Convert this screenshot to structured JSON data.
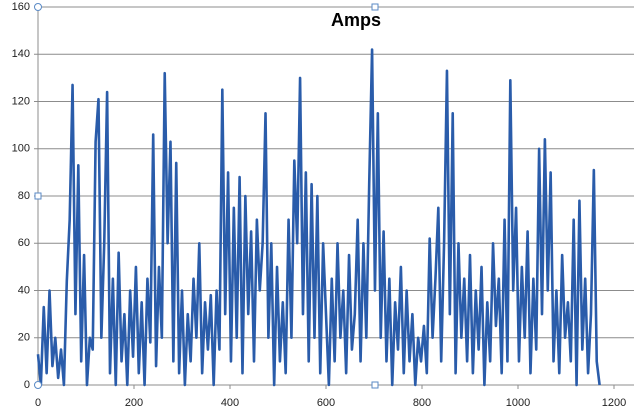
{
  "chart_data": {
    "type": "line",
    "title": "Amps",
    "x": [
      0,
      6,
      12,
      18,
      24,
      30,
      36,
      42,
      48,
      54,
      60,
      66,
      72,
      78,
      84,
      90,
      96,
      102,
      108,
      114,
      120,
      126,
      132,
      138,
      144,
      150,
      156,
      162,
      168,
      174,
      180,
      186,
      192,
      198,
      204,
      210,
      216,
      222,
      228,
      234,
      240,
      246,
      252,
      258,
      264,
      270,
      276,
      282,
      288,
      294,
      300,
      306,
      312,
      318,
      324,
      330,
      336,
      342,
      348,
      354,
      360,
      366,
      372,
      378,
      384,
      390,
      396,
      402,
      408,
      414,
      420,
      426,
      432,
      438,
      444,
      450,
      456,
      462,
      468,
      474,
      480,
      486,
      492,
      498,
      504,
      510,
      516,
      522,
      528,
      534,
      540,
      546,
      552,
      558,
      564,
      570,
      576,
      582,
      588,
      594,
      600,
      606,
      612,
      618,
      624,
      630,
      636,
      642,
      648,
      654,
      660,
      666,
      672,
      678,
      684,
      690,
      696,
      702,
      708,
      714,
      720,
      726,
      732,
      738,
      744,
      750,
      756,
      762,
      768,
      774,
      780,
      786,
      792,
      798,
      804,
      810,
      816,
      822,
      828,
      834,
      840,
      846,
      852,
      858,
      864,
      870,
      876,
      882,
      888,
      894,
      900,
      906,
      912,
      918,
      924,
      930,
      936,
      942,
      948,
      954,
      960,
      966,
      972,
      978,
      984,
      990,
      996,
      1002,
      1008,
      1014,
      1020,
      1026,
      1032,
      1038,
      1044,
      1050,
      1056,
      1062,
      1068,
      1074,
      1080,
      1086,
      1092,
      1098,
      1104,
      1110,
      1116,
      1122,
      1128,
      1134,
      1140,
      1146,
      1152,
      1158,
      1164,
      1170
    ],
    "series": [
      {
        "name": "Amps",
        "color": "#2a5caa",
        "values": [
          13,
          0,
          33,
          5,
          40,
          8,
          20,
          3,
          15,
          0,
          44,
          70,
          127,
          30,
          93,
          10,
          55,
          0,
          20,
          15,
          103,
          121,
          20,
          60,
          124,
          5,
          45,
          0,
          56,
          10,
          30,
          0,
          40,
          12,
          50,
          5,
          35,
          0,
          45,
          18,
          106,
          8,
          50,
          20,
          132,
          60,
          103,
          10,
          94,
          5,
          40,
          0,
          30,
          10,
          45,
          20,
          60,
          5,
          35,
          15,
          38,
          0,
          40,
          15,
          125,
          30,
          90,
          10,
          75,
          20,
          88,
          5,
          80,
          30,
          65,
          10,
          70,
          40,
          60,
          115,
          20,
          60,
          0,
          50,
          10,
          35,
          5,
          70,
          20,
          95,
          60,
          130,
          30,
          90,
          10,
          85,
          20,
          80,
          5,
          60,
          30,
          0,
          45,
          10,
          60,
          20,
          40,
          5,
          55,
          15,
          30,
          70,
          10,
          60,
          20,
          85,
          142,
          40,
          115,
          20,
          65,
          10,
          45,
          0,
          35,
          15,
          50,
          5,
          40,
          10,
          30,
          0,
          20,
          10,
          25,
          5,
          62,
          20,
          45,
          75,
          10,
          60,
          133,
          30,
          115,
          5,
          60,
          20,
          45,
          10,
          55,
          5,
          40,
          15,
          50,
          0,
          35,
          10,
          60,
          25,
          45,
          5,
          70,
          10,
          129,
          40,
          75,
          10,
          50,
          20,
          65,
          5,
          45,
          15,
          100,
          30,
          104,
          40,
          90,
          10,
          40,
          5,
          55,
          20,
          35,
          10,
          70,
          0,
          78,
          15,
          45,
          5,
          30,
          91,
          10,
          0
        ]
      }
    ],
    "xlim": [
      0,
      1200
    ],
    "ylim": [
      0,
      160
    ],
    "xticks": [
      0,
      200,
      400,
      600,
      800,
      1000,
      1200
    ],
    "yticks": [
      0,
      20,
      40,
      60,
      80,
      100,
      120,
      140,
      160
    ],
    "grid": true
  }
}
